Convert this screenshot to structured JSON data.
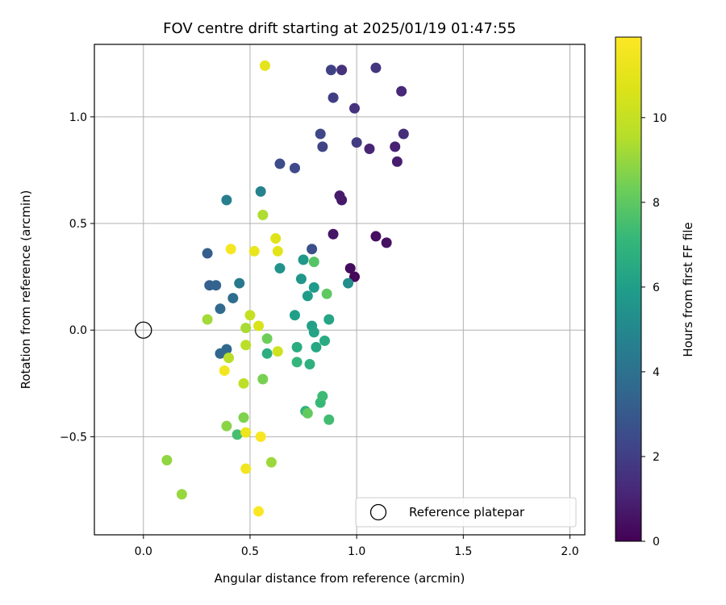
{
  "chart_data": {
    "type": "scatter",
    "title": "FOV centre drift starting at 2025/01/19 01:47:55",
    "xlabel": "Angular distance from reference (arcmin)",
    "ylabel": "Rotation from reference (arcmin)",
    "xlim": [
      -0.23,
      2.07
    ],
    "ylim": [
      -0.96,
      1.34
    ],
    "xticks": [
      0.0,
      0.5,
      1.0,
      1.5,
      2.0
    ],
    "xtick_labels": [
      "0.0",
      "0.5",
      "1.0",
      "1.5",
      "2.0"
    ],
    "yticks": [
      -0.5,
      0.0,
      0.5,
      1.0
    ],
    "ytick_labels": [
      "−0.5",
      "0.0",
      "0.5",
      "1.0"
    ],
    "grid": true,
    "colormap": "viridis",
    "colorbar": {
      "label": "Hours from first FF file",
      "range": [
        0,
        11.9
      ],
      "ticks": [
        0,
        2,
        4,
        6,
        8,
        10
      ],
      "tick_labels": [
        "0",
        "2",
        "4",
        "6",
        "8",
        "10"
      ]
    },
    "reference_point": {
      "x": 0.0,
      "y": 0.0
    },
    "legend": {
      "label": "Reference platepar",
      "placement": "lower-right"
    },
    "points": [
      {
        "x": 0.99,
        "y": 0.25,
        "h": 0.2
      },
      {
        "x": 0.97,
        "y": 0.29,
        "h": 0.3
      },
      {
        "x": 1.09,
        "y": 0.44,
        "h": 0.4
      },
      {
        "x": 1.14,
        "y": 0.41,
        "h": 0.5
      },
      {
        "x": 0.89,
        "y": 0.45,
        "h": 0.6
      },
      {
        "x": 0.93,
        "y": 0.61,
        "h": 0.7
      },
      {
        "x": 0.92,
        "y": 0.63,
        "h": 0.8
      },
      {
        "x": 1.19,
        "y": 0.79,
        "h": 0.9
      },
      {
        "x": 1.18,
        "y": 0.86,
        "h": 1.0
      },
      {
        "x": 1.06,
        "y": 0.85,
        "h": 1.1
      },
      {
        "x": 1.21,
        "y": 1.12,
        "h": 1.2
      },
      {
        "x": 1.22,
        "y": 0.92,
        "h": 1.4
      },
      {
        "x": 0.93,
        "y": 1.22,
        "h": 1.5
      },
      {
        "x": 0.99,
        "y": 1.04,
        "h": 1.6
      },
      {
        "x": 1.09,
        "y": 1.23,
        "h": 1.7
      },
      {
        "x": 1.0,
        "y": 0.88,
        "h": 1.9
      },
      {
        "x": 0.89,
        "y": 1.09,
        "h": 2.0
      },
      {
        "x": 0.88,
        "y": 1.22,
        "h": 2.1
      },
      {
        "x": 0.84,
        "y": 0.86,
        "h": 2.2
      },
      {
        "x": 0.83,
        "y": 0.92,
        "h": 2.3
      },
      {
        "x": 0.71,
        "y": 0.76,
        "h": 2.4
      },
      {
        "x": 0.64,
        "y": 0.78,
        "h": 2.5
      },
      {
        "x": 0.79,
        "y": 0.38,
        "h": 2.6
      },
      {
        "x": 0.3,
        "y": 0.36,
        "h": 3.2
      },
      {
        "x": 0.31,
        "y": 0.21,
        "h": 3.3
      },
      {
        "x": 0.34,
        "y": 0.21,
        "h": 3.4
      },
      {
        "x": 0.36,
        "y": -0.11,
        "h": 3.5
      },
      {
        "x": 0.39,
        "y": -0.09,
        "h": 3.6
      },
      {
        "x": 0.36,
        "y": 0.1,
        "h": 3.7
      },
      {
        "x": 0.42,
        "y": 0.15,
        "h": 3.8
      },
      {
        "x": 0.45,
        "y": 0.22,
        "h": 4.3
      },
      {
        "x": 0.39,
        "y": 0.61,
        "h": 4.6
      },
      {
        "x": 0.55,
        "y": 0.65,
        "h": 4.8
      },
      {
        "x": 0.96,
        "y": 0.22,
        "h": 5.2
      },
      {
        "x": 0.64,
        "y": 0.29,
        "h": 5.5
      },
      {
        "x": 0.74,
        "y": 0.24,
        "h": 5.6
      },
      {
        "x": 0.75,
        "y": 0.33,
        "h": 5.7
      },
      {
        "x": 0.8,
        "y": 0.2,
        "h": 5.8
      },
      {
        "x": 0.77,
        "y": 0.16,
        "h": 5.9
      },
      {
        "x": 0.71,
        "y": 0.07,
        "h": 6.0
      },
      {
        "x": 0.79,
        "y": 0.02,
        "h": 6.1
      },
      {
        "x": 0.8,
        "y": -0.01,
        "h": 6.2
      },
      {
        "x": 0.87,
        "y": 0.05,
        "h": 6.3
      },
      {
        "x": 0.81,
        "y": -0.08,
        "h": 6.4
      },
      {
        "x": 0.85,
        "y": -0.05,
        "h": 6.5
      },
      {
        "x": 0.72,
        "y": -0.08,
        "h": 6.6
      },
      {
        "x": 0.58,
        "y": -0.11,
        "h": 6.7
      },
      {
        "x": 0.78,
        "y": -0.16,
        "h": 6.8
      },
      {
        "x": 0.76,
        "y": -0.38,
        "h": 6.9
      },
      {
        "x": 0.72,
        "y": -0.15,
        "h": 7.1
      },
      {
        "x": 0.83,
        "y": -0.34,
        "h": 7.2
      },
      {
        "x": 0.84,
        "y": -0.31,
        "h": 7.3
      },
      {
        "x": 0.87,
        "y": -0.42,
        "h": 7.4
      },
      {
        "x": 0.44,
        "y": -0.49,
        "h": 7.5
      },
      {
        "x": 0.8,
        "y": 0.32,
        "h": 7.8
      },
      {
        "x": 0.86,
        "y": 0.17,
        "h": 8.0
      },
      {
        "x": 0.77,
        "y": -0.39,
        "h": 8.1
      },
      {
        "x": 0.58,
        "y": -0.04,
        "h": 8.3
      },
      {
        "x": 0.56,
        "y": -0.23,
        "h": 8.5
      },
      {
        "x": 0.47,
        "y": -0.41,
        "h": 8.6
      },
      {
        "x": 0.39,
        "y": -0.45,
        "h": 8.8
      },
      {
        "x": 0.11,
        "y": -0.61,
        "h": 8.9
      },
      {
        "x": 0.18,
        "y": -0.77,
        "h": 9.0
      },
      {
        "x": 0.6,
        "y": -0.62,
        "h": 9.1
      },
      {
        "x": 0.3,
        "y": 0.05,
        "h": 9.2
      },
      {
        "x": 0.48,
        "y": 0.01,
        "h": 9.3
      },
      {
        "x": 0.56,
        "y": 0.54,
        "h": 9.4
      },
      {
        "x": 0.4,
        "y": -0.13,
        "h": 9.6
      },
      {
        "x": 0.48,
        "y": -0.07,
        "h": 9.7
      },
      {
        "x": 0.47,
        "y": -0.25,
        "h": 9.8
      },
      {
        "x": 0.5,
        "y": 0.07,
        "h": 10.0
      },
      {
        "x": 0.63,
        "y": -0.1,
        "h": 10.3
      },
      {
        "x": 0.54,
        "y": 0.02,
        "h": 10.6
      },
      {
        "x": 0.62,
        "y": 0.43,
        "h": 10.8
      },
      {
        "x": 0.63,
        "y": 0.37,
        "h": 10.9
      },
      {
        "x": 0.57,
        "y": 1.24,
        "h": 11.0
      },
      {
        "x": 0.52,
        "y": 0.37,
        "h": 11.2
      },
      {
        "x": 0.48,
        "y": -0.48,
        "h": 11.3
      },
      {
        "x": 0.48,
        "y": -0.65,
        "h": 11.4
      },
      {
        "x": 0.38,
        "y": -0.19,
        "h": 11.5
      },
      {
        "x": 0.41,
        "y": 0.38,
        "h": 11.6
      },
      {
        "x": 0.55,
        "y": -0.5,
        "h": 11.7
      },
      {
        "x": 0.54,
        "y": -0.85,
        "h": 11.8
      }
    ]
  }
}
